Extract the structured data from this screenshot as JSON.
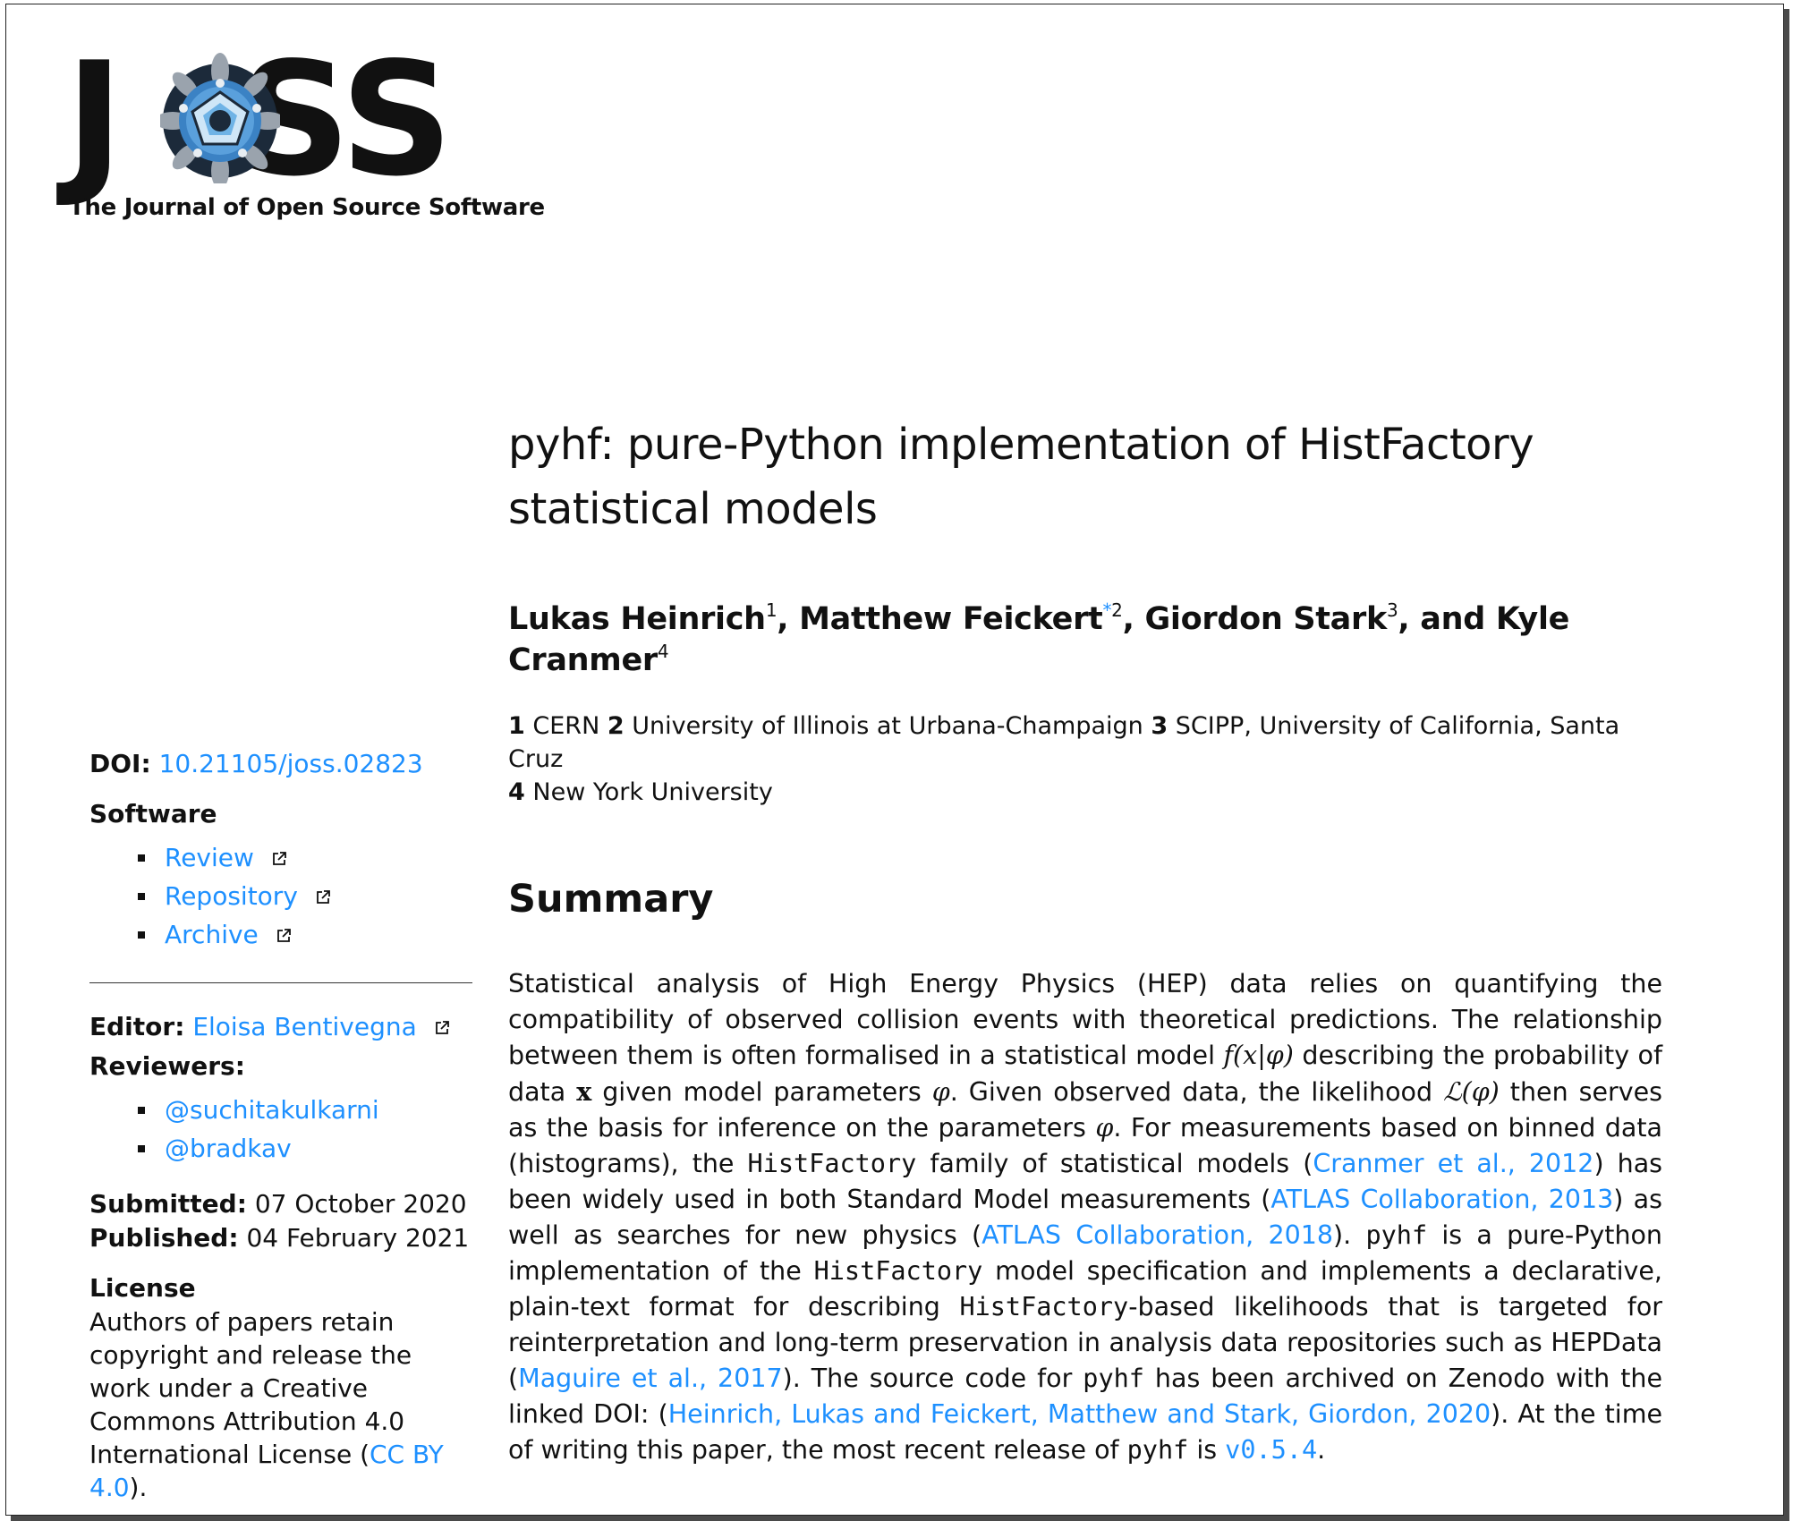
{
  "logo": {
    "wordmark": "JOSS",
    "subtitle": "The Journal of Open Source Software"
  },
  "sidebar": {
    "doi_label": "DOI:",
    "doi_value": "10.21105/joss.02823",
    "software_heading": "Software",
    "software_links": [
      {
        "label": "Review"
      },
      {
        "label": "Repository"
      },
      {
        "label": "Archive"
      }
    ],
    "editor_label": "Editor:",
    "editor_name": "Eloisa Bentivegna",
    "reviewers_label": "Reviewers:",
    "reviewers": [
      "@suchitakulkarni",
      "@bradkav"
    ],
    "submitted_label": "Submitted:",
    "submitted_date": "07 October 2020",
    "published_label": "Published:",
    "published_date": "04 February 2021",
    "license_heading": "License",
    "license_text": "Authors of papers retain copyright and release the work under a Creative Commons Attribution 4.0 International License (",
    "license_link": "CC BY 4.0",
    "license_end": ")."
  },
  "paper": {
    "title_line1": "pyhf: pure-Python implementation of HistFactory",
    "title_line2": "statistical models",
    "authors": [
      {
        "name": "Lukas Heinrich",
        "sup": "1"
      },
      {
        "name": "Matthew Feickert",
        "star": "*",
        "sup": "2"
      },
      {
        "name": "Giordon Stark",
        "sup": "3"
      },
      {
        "name": "Kyle Cranmer",
        "sup": "4"
      }
    ],
    "author_sep": ", ",
    "author_and": ", and Kyle",
    "affiliations": [
      {
        "num": "1",
        "name": "CERN"
      },
      {
        "num": "2",
        "name": "University of Illinois at Urbana-Champaign"
      },
      {
        "num": "3",
        "name": "SCIPP, University of California, Santa Cruz"
      },
      {
        "num": "4",
        "name": "New York University"
      }
    ],
    "summary_heading": "Summary",
    "summary": {
      "t1": "Statistical analysis of High Energy Physics (HEP) data relies on quantifying the compatibility of observed collision events with theoretical predictions.  The relationship between them is often formalised in a statistical model ",
      "m1": "f(x|φ)",
      "t2": " describing the probability of data ",
      "m2": "x",
      "t3": " given model parameters ",
      "m3": "φ",
      "t4": ".  Given observed data, the likelihood ",
      "m4": "ℒ(φ)",
      "t5": " then serves as the basis for inference on the parameters ",
      "m5": "φ",
      "t6": ".  For measurements based on binned data (histograms), the ",
      "c1": "HistFactory",
      "t7": " family of statistical models (",
      "l1": "Cranmer et al., 2012",
      "t8": ") has been widely used in both Standard Model measurements (",
      "l2": "ATLAS Collaboration, 2013",
      "t9": ") as well as searches for new physics (",
      "l3": "ATLAS Collaboration, 2018",
      "t10": ").  ",
      "c2": "pyhf",
      "t11": " is a pure-Python implementation of the ",
      "c3": "HistFactory",
      "t12": " model specification and implements a declarative, plain-text format for describing ",
      "c4": "HistFactory",
      "t13": "-based likelihoods that is targeted for reinterpretation and long-term preservation in analysis data repositories such as HEPData (",
      "l4": "Maguire et al., 2017",
      "t14": ").  The source code for ",
      "c5": "pyhf",
      "t15": " has been archived on Zenodo with the linked DOI: (",
      "l5": "Heinrich, Lukas and Feickert, Matthew and Stark, Giordon, 2020",
      "t16": ").  At the time of writing this paper, the most recent release of ",
      "c6": "pyhf",
      "t17": " is ",
      "l6": "v0.5.4",
      "t18": "."
    }
  },
  "colors": {
    "link": "#1e90ff",
    "text": "#111111",
    "logo_blue": "#3b82c4"
  }
}
